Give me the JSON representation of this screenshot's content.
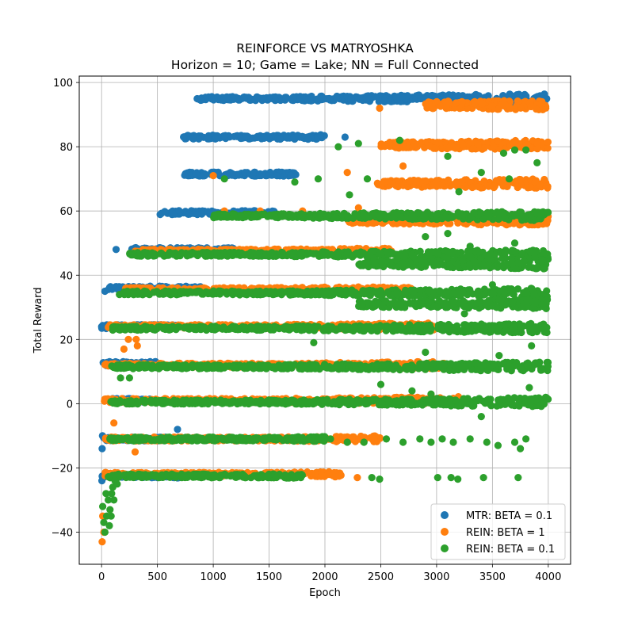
{
  "chart_data": {
    "type": "scatter",
    "title": "REINFORCE VS MATRYOSHKA",
    "subtitle": "Horizon = 10; Game = Lake; NN = Full Connected",
    "xlabel": "Epoch",
    "ylabel": "Total Reward",
    "xlim": [
      -200,
      4200
    ],
    "ylim": [
      -50,
      102
    ],
    "xticks": [
      0,
      500,
      1000,
      1500,
      2000,
      2500,
      3000,
      3500,
      4000
    ],
    "yticks": [
      -40,
      -20,
      0,
      20,
      40,
      60,
      80,
      100
    ],
    "grid": true,
    "legend_position": "lower-right",
    "series": [
      {
        "name": "MTR: BETA = 0.1",
        "color": "#1f77b4",
        "bands": [
          {
            "y": 95,
            "x_start": 850,
            "x_end": 4000
          },
          {
            "y": 83,
            "x_start": 730,
            "x_end": 2000
          },
          {
            "y": 71.5,
            "x_start": 730,
            "x_end": 1750
          },
          {
            "y": 59.5,
            "x_start": 520,
            "x_end": 1550
          },
          {
            "y": 48,
            "x_start": 260,
            "x_end": 1200
          },
          {
            "y": 36,
            "x_start": 60,
            "x_end": 900
          },
          {
            "y": 24,
            "x_start": 0,
            "x_end": 700
          },
          {
            "y": 12.5,
            "x_start": 10,
            "x_end": 500
          },
          {
            "y": 1,
            "x_start": 30,
            "x_end": 450
          },
          {
            "y": -11,
            "x_start": 0,
            "x_end": 600
          },
          {
            "y": -22.5,
            "x_start": 0,
            "x_end": 700
          }
        ],
        "points": [
          {
            "x": 30,
            "y": 35
          },
          {
            "x": 130,
            "y": 48
          },
          {
            "x": 2180,
            "y": 83
          },
          {
            "x": 680,
            "y": -8
          },
          {
            "x": 5,
            "y": -14
          },
          {
            "x": 3,
            "y": -24
          },
          {
            "x": 8,
            "y": -10
          }
        ]
      },
      {
        "name": "REIN: BETA = 1",
        "color": "#ff7f0e",
        "bands": [
          {
            "y": 93,
            "x_start": 2900,
            "x_end": 4000
          },
          {
            "y": 80.5,
            "x_start": 2500,
            "x_end": 4000
          },
          {
            "y": 68.5,
            "x_start": 2450,
            "x_end": 4000
          },
          {
            "y": 57,
            "x_start": 2200,
            "x_end": 4000
          },
          {
            "y": 47.5,
            "x_start": 300,
            "x_end": 2600
          },
          {
            "y": 35.5,
            "x_start": 200,
            "x_end": 2800
          },
          {
            "y": 24,
            "x_start": 50,
            "x_end": 3000
          },
          {
            "y": 12,
            "x_start": 30,
            "x_end": 3100
          },
          {
            "y": 1,
            "x_start": 20,
            "x_end": 3200
          },
          {
            "y": -11,
            "x_start": 30,
            "x_end": 2500
          },
          {
            "y": -22,
            "x_start": 30,
            "x_end": 2150
          }
        ],
        "points": [
          {
            "x": 2490,
            "y": 92
          },
          {
            "x": 1000,
            "y": 71
          },
          {
            "x": 1100,
            "y": 60
          },
          {
            "x": 1800,
            "y": 60
          },
          {
            "x": 2200,
            "y": 72
          },
          {
            "x": 1420,
            "y": 60
          },
          {
            "x": 200,
            "y": 17
          },
          {
            "x": 240,
            "y": 20
          },
          {
            "x": 310,
            "y": 20
          },
          {
            "x": 320,
            "y": 18
          },
          {
            "x": 300,
            "y": -15
          },
          {
            "x": 110,
            "y": -6
          },
          {
            "x": 2290,
            "y": -23
          },
          {
            "x": 2300,
            "y": 61
          },
          {
            "x": 5,
            "y": -43
          },
          {
            "x": 20,
            "y": -40
          },
          {
            "x": 10,
            "y": -35
          },
          {
            "x": 2700,
            "y": 74
          }
        ]
      },
      {
        "name": "REIN: BETA = 0.1",
        "color": "#2ca02c",
        "bands": [
          {
            "y": 58.5,
            "x_start": 1000,
            "x_end": 4000
          },
          {
            "y": 46.5,
            "x_start": 250,
            "x_end": 4000
          },
          {
            "y": 43.5,
            "x_start": 2300,
            "x_end": 4000
          },
          {
            "y": 34.5,
            "x_start": 200,
            "x_end": 4000
          },
          {
            "y": 31,
            "x_start": 2300,
            "x_end": 4000
          },
          {
            "y": 23.5,
            "x_start": 100,
            "x_end": 4000
          },
          {
            "y": 11.5,
            "x_start": 80,
            "x_end": 4000
          },
          {
            "y": 0.5,
            "x_start": 60,
            "x_end": 4000
          },
          {
            "y": -11,
            "x_start": 60,
            "x_end": 2000
          },
          {
            "y": -22.5,
            "x_start": 60,
            "x_end": 1800
          }
        ],
        "points": [
          {
            "x": 2670,
            "y": 82
          },
          {
            "x": 2120,
            "y": 80
          },
          {
            "x": 2300,
            "y": 81
          },
          {
            "x": 1940,
            "y": 70
          },
          {
            "x": 2220,
            "y": 65
          },
          {
            "x": 2380,
            "y": 70
          },
          {
            "x": 3100,
            "y": 77
          },
          {
            "x": 3400,
            "y": 72
          },
          {
            "x": 3600,
            "y": 78
          },
          {
            "x": 3700,
            "y": 79
          },
          {
            "x": 3800,
            "y": 79
          },
          {
            "x": 3900,
            "y": 75
          },
          {
            "x": 1730,
            "y": 69
          },
          {
            "x": 3200,
            "y": 66
          },
          {
            "x": 3650,
            "y": 70
          },
          {
            "x": 1100,
            "y": 70
          },
          {
            "x": 2100,
            "y": 58
          },
          {
            "x": 2500,
            "y": 6
          },
          {
            "x": 2780,
            "y": 4
          },
          {
            "x": 2950,
            "y": 3
          },
          {
            "x": 3400,
            "y": -4
          },
          {
            "x": 2050,
            "y": -11
          },
          {
            "x": 2200,
            "y": -12
          },
          {
            "x": 2350,
            "y": -12
          },
          {
            "x": 2550,
            "y": -11
          },
          {
            "x": 2700,
            "y": -12
          },
          {
            "x": 2850,
            "y": -11
          },
          {
            "x": 2950,
            "y": -12
          },
          {
            "x": 3050,
            "y": -11
          },
          {
            "x": 3150,
            "y": -12
          },
          {
            "x": 3300,
            "y": -11
          },
          {
            "x": 3450,
            "y": -12
          },
          {
            "x": 3550,
            "y": -13
          },
          {
            "x": 3700,
            "y": -12
          },
          {
            "x": 3800,
            "y": -11
          },
          {
            "x": 3750,
            "y": -14
          },
          {
            "x": 2420,
            "y": -23
          },
          {
            "x": 2490,
            "y": -23.5
          },
          {
            "x": 3010,
            "y": -23
          },
          {
            "x": 3130,
            "y": -23
          },
          {
            "x": 3190,
            "y": -23.5
          },
          {
            "x": 3420,
            "y": -23
          },
          {
            "x": 3730,
            "y": -23
          },
          {
            "x": 3830,
            "y": 5
          },
          {
            "x": 3850,
            "y": 18
          },
          {
            "x": 3560,
            "y": 15
          },
          {
            "x": 2900,
            "y": 16
          },
          {
            "x": 1900,
            "y": 19
          },
          {
            "x": 3250,
            "y": 28
          },
          {
            "x": 3500,
            "y": 37
          },
          {
            "x": 3300,
            "y": 49
          },
          {
            "x": 3700,
            "y": 50
          },
          {
            "x": 3100,
            "y": 53
          },
          {
            "x": 2900,
            "y": 52
          },
          {
            "x": 10,
            "y": -32
          },
          {
            "x": 20,
            "y": -37
          },
          {
            "x": 30,
            "y": -40
          },
          {
            "x": 45,
            "y": -35
          },
          {
            "x": 60,
            "y": -30
          },
          {
            "x": 75,
            "y": -33
          },
          {
            "x": 90,
            "y": -28
          },
          {
            "x": 100,
            "y": -26
          },
          {
            "x": 120,
            "y": -24
          },
          {
            "x": 140,
            "y": -25
          },
          {
            "x": 70,
            "y": -38
          },
          {
            "x": 85,
            "y": -35
          },
          {
            "x": 110,
            "y": -30
          },
          {
            "x": 40,
            "y": -28
          },
          {
            "x": 150,
            "y": -22
          },
          {
            "x": 170,
            "y": 8
          },
          {
            "x": 250,
            "y": 8
          },
          {
            "x": 160,
            "y": 34
          },
          {
            "x": 230,
            "y": 35
          },
          {
            "x": 320,
            "y": 46
          },
          {
            "x": 380,
            "y": 47
          }
        ]
      }
    ]
  }
}
